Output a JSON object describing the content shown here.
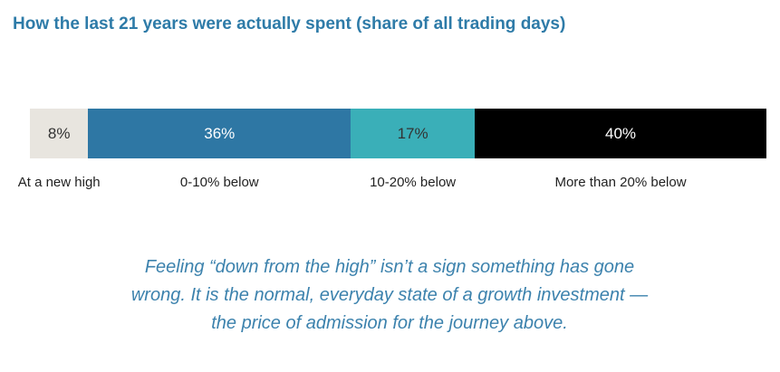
{
  "chart_data": {
    "type": "bar",
    "subtype": "stacked-100",
    "title": "How the last 21 years were actually spent (share of all trading days)",
    "unit": "%",
    "categories": [
      "At a new high",
      "0-10% below",
      "10-20% below",
      "More than 20% below"
    ],
    "values": [
      8,
      36,
      17,
      40
    ],
    "value_labels": [
      "8%",
      "36%",
      "17%",
      "40%"
    ],
    "colors": [
      "#e8e5df",
      "#2e77a4",
      "#3aafb8",
      "#000000"
    ],
    "label_colors": [
      "#333333",
      "#ffffff",
      "#333333",
      "#ffffff"
    ],
    "grid": false,
    "legend": "none"
  },
  "note": {
    "lines": [
      "Feeling “down from the high” isn’t a sign something has gone",
      "wrong. It is the normal, everyday state of a growth investment —",
      "the price of admission for the journey above."
    ]
  }
}
